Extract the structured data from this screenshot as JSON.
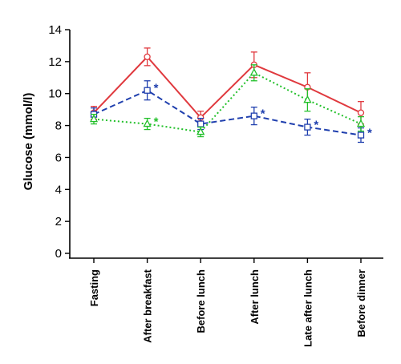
{
  "chart_data": {
    "type": "line",
    "title": "",
    "xlabel": "",
    "ylabel": "Glucose (mmol/l)",
    "ylim": [
      0,
      14
    ],
    "yticks": [
      "0",
      "2",
      "4",
      "6",
      "8",
      "10",
      "12",
      "14"
    ],
    "categories": [
      "Fasting",
      "After breakfast",
      "Before lunch",
      "After lunch",
      "Late after lunch",
      "Before dinner"
    ],
    "grid": false,
    "series": [
      {
        "color": "#e0393e",
        "marker": "circle",
        "dash": "solid",
        "values": [
          8.8,
          12.3,
          8.5,
          11.8,
          10.4,
          8.8
        ],
        "err": [
          0.4,
          0.55,
          0.4,
          0.8,
          0.9,
          0.7
        ]
      },
      {
        "color": "#1f3fae",
        "marker": "square",
        "dash": "dashed",
        "values": [
          8.7,
          10.2,
          8.1,
          8.6,
          7.9,
          7.4
        ],
        "err": [
          0.4,
          0.6,
          0.35,
          0.55,
          0.5,
          0.45
        ],
        "significance_marks": [
          "",
          "*",
          "",
          "*",
          "*",
          "*"
        ]
      },
      {
        "color": "#22c02a",
        "marker": "triangle",
        "dash": "dotted",
        "values": [
          8.4,
          8.1,
          7.6,
          11.3,
          9.6,
          8.1
        ],
        "err": [
          0.3,
          0.35,
          0.3,
          0.5,
          0.7,
          0.45
        ],
        "significance_marks": [
          "",
          "*",
          "",
          "",
          "",
          ""
        ]
      }
    ]
  }
}
